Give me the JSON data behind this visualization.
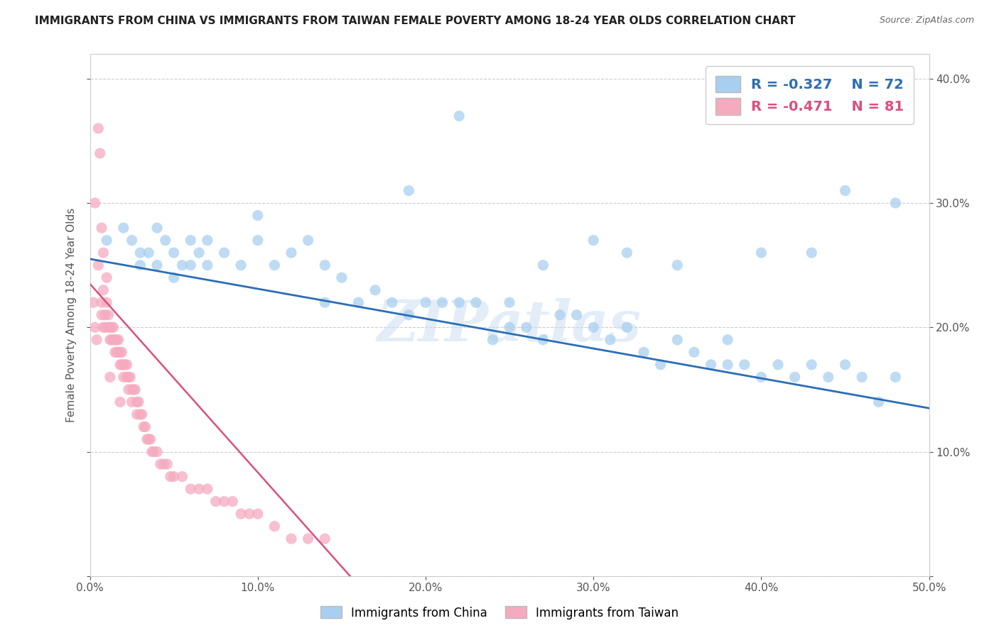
{
  "title": "IMMIGRANTS FROM CHINA VS IMMIGRANTS FROM TAIWAN FEMALE POVERTY AMONG 18-24 YEAR OLDS CORRELATION CHART",
  "source": "Source: ZipAtlas.com",
  "ylabel": "Female Poverty Among 18-24 Year Olds",
  "xlim": [
    0.0,
    0.5
  ],
  "ylim": [
    0.0,
    0.42
  ],
  "china_R": -0.327,
  "china_N": 72,
  "taiwan_R": -0.471,
  "taiwan_N": 81,
  "china_color": "#A8CFEF",
  "taiwan_color": "#F5AABF",
  "china_line_color": "#2A6DB5",
  "taiwan_line_color": "#D95080",
  "watermark": "ZIPatlas",
  "china_line_x0": 0.0,
  "china_line_y0": 0.255,
  "china_line_x1": 0.5,
  "china_line_y1": 0.135,
  "taiwan_line_x0": 0.0,
  "taiwan_line_y0": 0.235,
  "taiwan_line_x1": 0.155,
  "taiwan_line_y1": 0.0,
  "china_scatter_x": [
    0.01,
    0.02,
    0.025,
    0.03,
    0.03,
    0.035,
    0.04,
    0.04,
    0.045,
    0.05,
    0.05,
    0.055,
    0.06,
    0.06,
    0.065,
    0.07,
    0.07,
    0.08,
    0.09,
    0.1,
    0.1,
    0.11,
    0.12,
    0.13,
    0.14,
    0.14,
    0.15,
    0.16,
    0.17,
    0.18,
    0.19,
    0.2,
    0.21,
    0.22,
    0.23,
    0.24,
    0.25,
    0.26,
    0.27,
    0.28,
    0.29,
    0.3,
    0.31,
    0.32,
    0.33,
    0.34,
    0.35,
    0.36,
    0.37,
    0.38,
    0.39,
    0.4,
    0.41,
    0.42,
    0.43,
    0.44,
    0.45,
    0.46,
    0.47,
    0.48,
    0.27,
    0.22,
    0.32,
    0.35,
    0.4,
    0.45,
    0.48,
    0.19,
    0.25,
    0.3,
    0.38,
    0.43
  ],
  "china_scatter_y": [
    0.27,
    0.28,
    0.27,
    0.26,
    0.25,
    0.26,
    0.28,
    0.25,
    0.27,
    0.26,
    0.24,
    0.25,
    0.27,
    0.25,
    0.26,
    0.27,
    0.25,
    0.26,
    0.25,
    0.29,
    0.27,
    0.25,
    0.26,
    0.27,
    0.22,
    0.25,
    0.24,
    0.22,
    0.23,
    0.22,
    0.21,
    0.22,
    0.22,
    0.22,
    0.22,
    0.19,
    0.22,
    0.2,
    0.19,
    0.21,
    0.21,
    0.2,
    0.19,
    0.2,
    0.18,
    0.17,
    0.19,
    0.18,
    0.17,
    0.19,
    0.17,
    0.16,
    0.17,
    0.16,
    0.17,
    0.16,
    0.17,
    0.16,
    0.14,
    0.16,
    0.25,
    0.37,
    0.26,
    0.25,
    0.26,
    0.31,
    0.3,
    0.31,
    0.2,
    0.27,
    0.17,
    0.26
  ],
  "taiwan_scatter_x": [
    0.002,
    0.003,
    0.004,
    0.005,
    0.006,
    0.007,
    0.007,
    0.008,
    0.008,
    0.009,
    0.009,
    0.01,
    0.01,
    0.011,
    0.011,
    0.012,
    0.012,
    0.013,
    0.013,
    0.014,
    0.014,
    0.015,
    0.015,
    0.016,
    0.016,
    0.017,
    0.017,
    0.018,
    0.018,
    0.019,
    0.019,
    0.02,
    0.02,
    0.021,
    0.022,
    0.022,
    0.023,
    0.023,
    0.024,
    0.025,
    0.025,
    0.026,
    0.027,
    0.028,
    0.028,
    0.029,
    0.03,
    0.031,
    0.032,
    0.033,
    0.034,
    0.035,
    0.036,
    0.037,
    0.038,
    0.04,
    0.042,
    0.044,
    0.046,
    0.048,
    0.05,
    0.055,
    0.06,
    0.065,
    0.07,
    0.075,
    0.08,
    0.085,
    0.09,
    0.095,
    0.1,
    0.11,
    0.12,
    0.13,
    0.14,
    0.005,
    0.008,
    0.012,
    0.018,
    0.003,
    0.007
  ],
  "taiwan_scatter_y": [
    0.22,
    0.2,
    0.19,
    0.36,
    0.34,
    0.22,
    0.21,
    0.23,
    0.2,
    0.21,
    0.2,
    0.24,
    0.22,
    0.21,
    0.2,
    0.2,
    0.19,
    0.2,
    0.19,
    0.2,
    0.19,
    0.19,
    0.18,
    0.19,
    0.18,
    0.19,
    0.18,
    0.18,
    0.17,
    0.18,
    0.17,
    0.17,
    0.16,
    0.17,
    0.17,
    0.16,
    0.16,
    0.15,
    0.16,
    0.15,
    0.14,
    0.15,
    0.15,
    0.14,
    0.13,
    0.14,
    0.13,
    0.13,
    0.12,
    0.12,
    0.11,
    0.11,
    0.11,
    0.1,
    0.1,
    0.1,
    0.09,
    0.09,
    0.09,
    0.08,
    0.08,
    0.08,
    0.07,
    0.07,
    0.07,
    0.06,
    0.06,
    0.06,
    0.05,
    0.05,
    0.05,
    0.04,
    0.03,
    0.03,
    0.03,
    0.25,
    0.26,
    0.16,
    0.14,
    0.3,
    0.28
  ]
}
